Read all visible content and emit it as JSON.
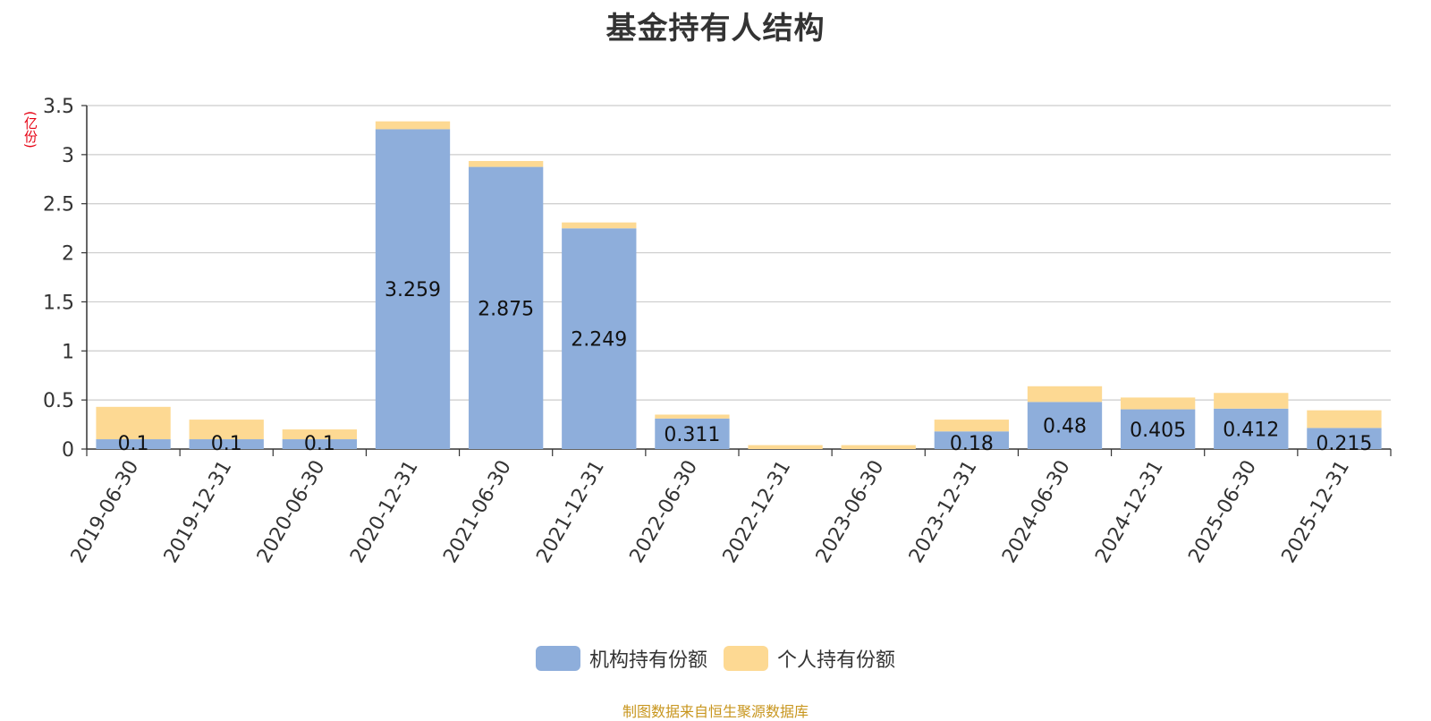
{
  "chart_data": {
    "type": "bar",
    "stacked": true,
    "title": "基金持有人结构",
    "ylabel": "(亿份)",
    "ylim": [
      0,
      3.5
    ],
    "yticks": [
      "0",
      "0.5",
      "1",
      "1.5",
      "2",
      "2.5",
      "3",
      "3.5"
    ],
    "grid": true,
    "legend_position": "bottom",
    "categories": [
      "2019-06-30",
      "2019-12-31",
      "2020-06-30",
      "2020-12-31",
      "2021-06-30",
      "2021-12-31",
      "2022-06-30",
      "2022-12-31",
      "2023-06-30",
      "2023-12-31",
      "2024-06-30",
      "2024-12-31",
      "2025-06-30",
      "2025-12-31"
    ],
    "series": [
      {
        "name": "机构持有份额",
        "color": "#8eaedb",
        "values": [
          0.1,
          0.1,
          0.1,
          3.259,
          2.875,
          2.249,
          0.311,
          0,
          0,
          0.18,
          0.48,
          0.405,
          0.412,
          0.215
        ],
        "labels": [
          "0.1",
          "0.1",
          "0.1",
          "3.259",
          "2.875",
          "2.249",
          "0.311",
          "",
          "",
          "0.18",
          "0.48",
          "0.405",
          "0.412",
          "0.215"
        ]
      },
      {
        "name": "个人持有份额",
        "color": "#fdd993",
        "values": [
          0.33,
          0.2,
          0.1,
          0.08,
          0.06,
          0.06,
          0.04,
          0.04,
          0.04,
          0.12,
          0.16,
          0.12,
          0.16,
          0.18
        ]
      }
    ]
  },
  "footer": {
    "source": "制图数据来自恒生聚源数据库"
  }
}
